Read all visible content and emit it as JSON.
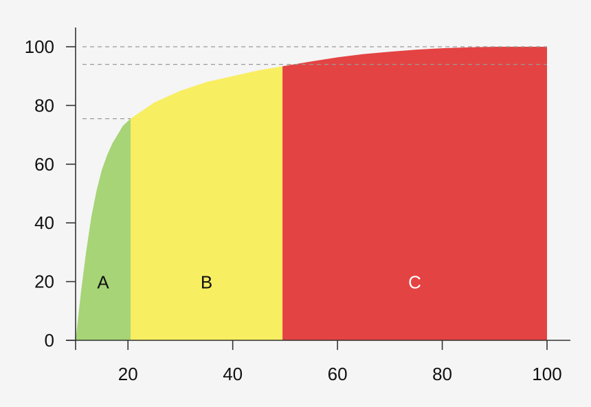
{
  "chart_data": {
    "type": "area",
    "title": "",
    "xlabel": "",
    "ylabel": "",
    "xlim": [
      10,
      100
    ],
    "ylim": [
      0,
      100
    ],
    "x_ticks": [
      20,
      40,
      60,
      80,
      100
    ],
    "y_ticks": [
      0,
      20,
      40,
      60,
      80,
      100
    ],
    "grid": false,
    "curve": {
      "x": [
        10,
        11,
        12,
        13,
        14,
        15,
        16,
        17,
        18,
        19,
        20.5,
        25,
        30,
        35,
        40,
        45,
        50,
        55,
        60,
        65,
        70,
        75,
        80,
        85,
        90,
        95,
        100
      ],
      "y": [
        0,
        16,
        30,
        42,
        51,
        58,
        63,
        67,
        70,
        73,
        75.5,
        81,
        85,
        88,
        90,
        92,
        93.5,
        95,
        96.4,
        97.5,
        98.3,
        99,
        99.5,
        99.8,
        100,
        100,
        100
      ]
    },
    "zones": [
      {
        "label": "A",
        "x_start": 10,
        "x_end": 20.5,
        "color": "#a6d477",
        "label_color": "#111111"
      },
      {
        "label": "B",
        "x_start": 20.5,
        "x_end": 49.5,
        "color": "#f8ee62",
        "label_color": "#111111"
      },
      {
        "label": "C",
        "x_start": 49.5,
        "x_end": 100,
        "color": "#e44343",
        "label_color": "#ffffff"
      }
    ],
    "reference_lines": [
      {
        "y": 100,
        "x_end": 100
      },
      {
        "y": 94,
        "x_end": 100
      },
      {
        "y": 75.5,
        "x_end": 20.5
      }
    ]
  }
}
